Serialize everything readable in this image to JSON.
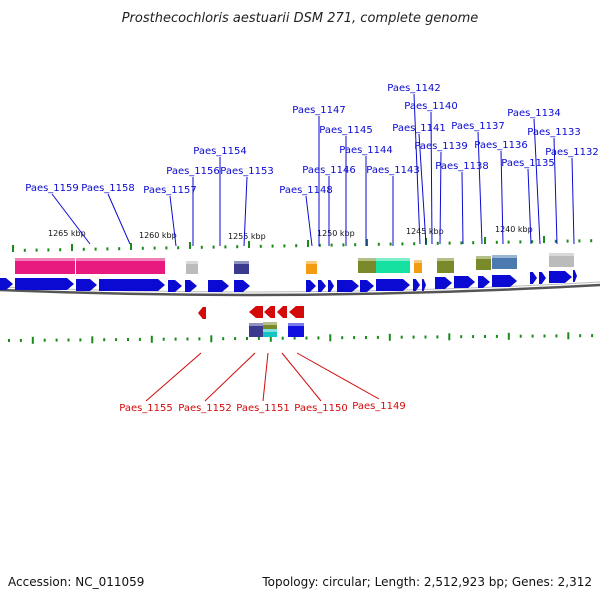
{
  "title": "Prosthecochloris aestuarii DSM 271, complete genome",
  "footer": {
    "accession": "Accession: NC_011059",
    "summary": "Topology: circular; Length: 2,512,923 bp; Genes: 2,312"
  },
  "colors": {
    "forward": "#0a0ad2",
    "reverse": "#d20a0a",
    "tick": "#1a8a1a",
    "backbone": "#666666"
  },
  "kbp_labels": [
    "1265 kbp",
    "1260 kbp",
    "1255 kbp",
    "1250 kbp",
    "1245 kbp",
    "1240 kbp"
  ],
  "forward_genes": [
    "Paes_1159",
    "Paes_1158",
    "Paes_1157",
    "Paes_1156",
    "Paes_1154",
    "Paes_1153",
    "Paes_1148",
    "Paes_1147",
    "Paes_1146",
    "Paes_1145",
    "Paes_1144",
    "Paes_1143",
    "Paes_1142",
    "Paes_1141",
    "Paes_1140",
    "Paes_1139",
    "Paes_1138",
    "Paes_1137",
    "Paes_1136",
    "Paes_1135",
    "Paes_1134",
    "Paes_1133",
    "Paes_1132"
  ],
  "reverse_genes": [
    "Paes_1155",
    "Paes_1152",
    "Paes_1151",
    "Paes_1150",
    "Paes_1149"
  ]
}
